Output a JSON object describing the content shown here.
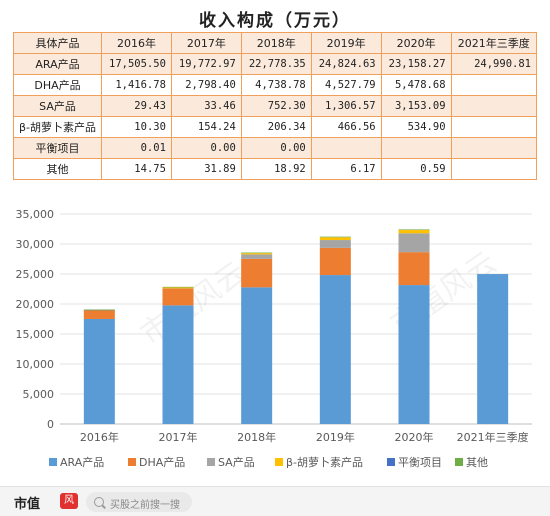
{
  "table": {
    "title": "收入构成（万元）",
    "headers": [
      "具体产品",
      "2016年",
      "2017年",
      "2018年",
      "2019年",
      "2020年",
      "2021年三季度"
    ],
    "rows": [
      [
        "ARA产品",
        "17,505.50",
        "19,772.97",
        "22,778.35",
        "24,824.63",
        "23,158.27",
        "24,990.81"
      ],
      [
        "DHA产品",
        "1,416.78",
        "2,798.40",
        "4,738.78",
        "4,527.79",
        "5,478.68",
        ""
      ],
      [
        "SA产品",
        "29.43",
        "33.46",
        "752.30",
        "1,306.57",
        "3,153.09",
        ""
      ],
      [
        "β-胡萝卜素产品",
        "10.30",
        "154.24",
        "206.34",
        "466.56",
        "534.90",
        ""
      ],
      [
        "平衡项目",
        "0.01",
        "0.00",
        "0.00",
        "",
        "",
        ""
      ],
      [
        "其他",
        "14.75",
        "31.89",
        "18.92",
        "6.17",
        "0.59",
        ""
      ]
    ]
  },
  "chart_data": {
    "type": "bar",
    "stacked": true,
    "categories": [
      "2016年",
      "2017年",
      "2018年",
      "2019年",
      "2020年",
      "2021年三季度"
    ],
    "ylim": [
      0,
      35000
    ],
    "yticks": [
      "0",
      "5,000",
      "10,000",
      "15,000",
      "20,000",
      "25,000",
      "30,000",
      "35,000"
    ],
    "grid": true,
    "legend_position": "bottom",
    "series": [
      {
        "name": "ARA产品",
        "color": "#5b9bd5",
        "values": [
          17505.5,
          19772.97,
          22778.35,
          24824.63,
          23158.27,
          24990.81
        ]
      },
      {
        "name": "DHA产品",
        "color": "#ed7d31",
        "values": [
          1416.78,
          2798.4,
          4738.78,
          4527.79,
          5478.68,
          0
        ]
      },
      {
        "name": "SA产品",
        "color": "#a5a5a5",
        "values": [
          29.43,
          33.46,
          752.3,
          1306.57,
          3153.09,
          0
        ]
      },
      {
        "name": "β-胡萝卜素产品",
        "color": "#ffc000",
        "values": [
          10.3,
          154.24,
          206.34,
          466.56,
          534.9,
          0
        ]
      },
      {
        "name": "平衡项目",
        "color": "#4472c4",
        "values": [
          0.01,
          0.0,
          0.0,
          0,
          0,
          0
        ]
      },
      {
        "name": "其他",
        "color": "#70ad47",
        "values": [
          14.75,
          31.89,
          18.92,
          6.17,
          0.59,
          0
        ]
      }
    ]
  },
  "watermark": "市值风云",
  "footer": {
    "logo_text": "市值",
    "logo_mark": "风云",
    "search_placeholder": "买股之前搜一搜"
  }
}
